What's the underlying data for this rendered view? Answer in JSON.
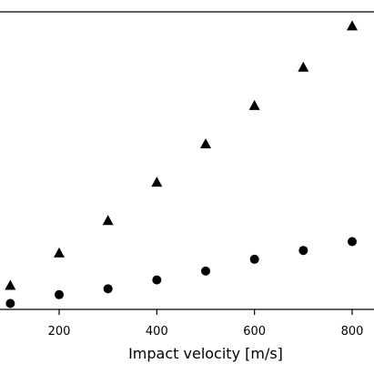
{
  "chart_data": {
    "type": "scatter",
    "title": "",
    "xlabel": "Impact velocity [m/s]",
    "ylabel": "",
    "xlim": [
      0,
      850
    ],
    "x_ticks": [
      200,
      400,
      600,
      800
    ],
    "x_tick_labels": [
      "200",
      "400",
      "600",
      "800"
    ],
    "grid": false,
    "series": [
      {
        "marker": "triangle",
        "color": "#000000",
        "x": [
          100,
          200,
          300,
          400,
          500,
          600,
          700,
          800
        ],
        "y": [
          0.08,
          0.19,
          0.3,
          0.43,
          0.56,
          0.69,
          0.82,
          0.96
        ]
      },
      {
        "marker": "circle",
        "color": "#000000",
        "x": [
          100,
          200,
          300,
          400,
          500,
          600,
          700,
          800
        ],
        "y": [
          0.02,
          0.05,
          0.07,
          0.1,
          0.13,
          0.17,
          0.2,
          0.23
        ]
      }
    ],
    "ylim": [
      0,
      1
    ]
  }
}
